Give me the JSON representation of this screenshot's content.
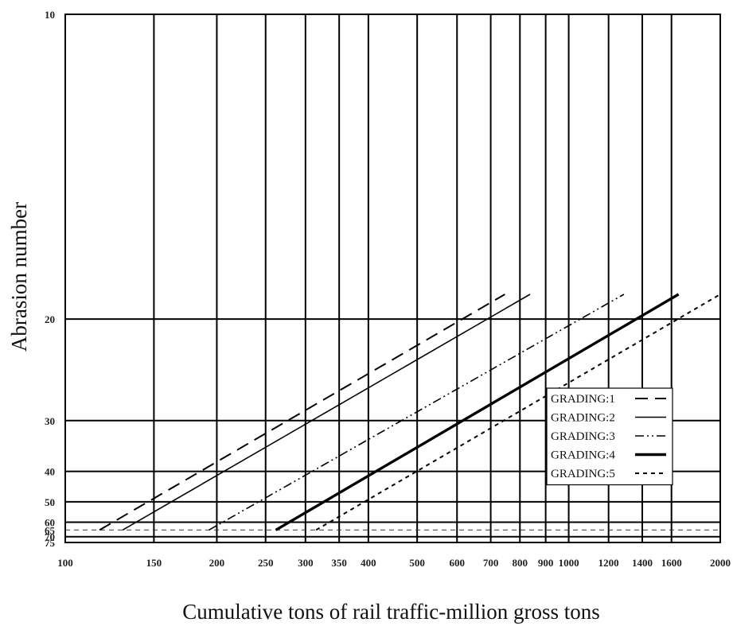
{
  "chart_data": {
    "type": "line",
    "xlabel": "Cumulative tons of rail traffic-million gross tons",
    "ylabel": "Abrasion number",
    "x_scale": "log",
    "y_scale": "reciprocal",
    "xlim": [
      100,
      2000
    ],
    "ylim": [
      10,
      75
    ],
    "grid": true,
    "legend_position": "bottom-right",
    "x_ticks": [
      100,
      150,
      200,
      250,
      300,
      350,
      400,
      500,
      600,
      700,
      800,
      900,
      1000,
      1200,
      1400,
      1600,
      2000
    ],
    "x_tick_labels": [
      "100",
      "150",
      "200",
      "250",
      "300",
      "350",
      "400",
      "500",
      "600",
      "700",
      "800",
      "900",
      "1000",
      "1200",
      "1400",
      "1600",
      "2000"
    ],
    "y_ticks": [
      10,
      20,
      30,
      40,
      50,
      60,
      65,
      70,
      75
    ],
    "y_tick_labels": [
      "10",
      "20",
      "30",
      "40",
      "50",
      "60",
      "65",
      "70",
      "75"
    ],
    "reference_line": {
      "y": 65,
      "style": "dashed"
    },
    "series": [
      {
        "name": "GRADING:1",
        "style": "long-dash",
        "x": [
          117,
          747
        ],
        "y": [
          65,
          18.5
        ]
      },
      {
        "name": "GRADING:2",
        "style": "solid",
        "x": [
          130,
          838
        ],
        "y": [
          65,
          18.5
        ]
      },
      {
        "name": "GRADING:3",
        "style": "dash-dot-dot",
        "x": [
          193,
          1287
        ],
        "y": [
          65,
          18.5
        ]
      },
      {
        "name": "GRADING:4",
        "style": "thick-solid",
        "x": [
          262,
          1653
        ],
        "y": [
          65,
          18.5
        ]
      },
      {
        "name": "GRADING:5",
        "style": "short-dash",
        "x": [
          315,
          2000
        ],
        "y": [
          65,
          18.5
        ]
      }
    ]
  }
}
